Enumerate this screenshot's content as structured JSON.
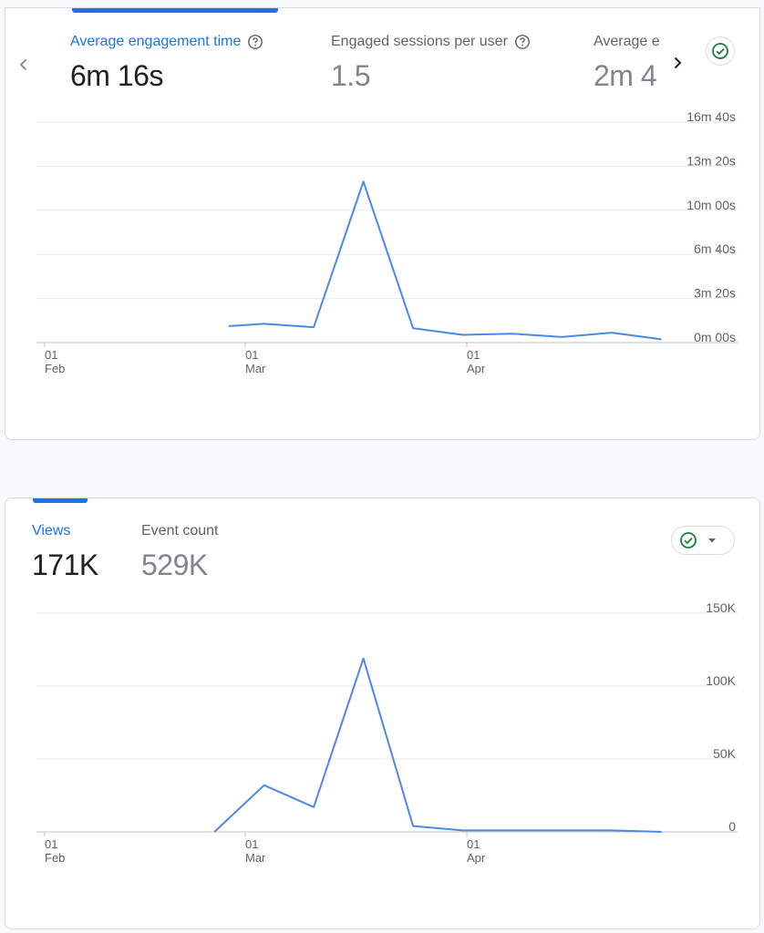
{
  "card1": {
    "metrics": [
      {
        "label": "Average engagement time",
        "value": "6m 16s"
      },
      {
        "label": "Engaged sessions per user",
        "value": "1.5"
      },
      {
        "label": "Average e",
        "value": "2m 4"
      }
    ]
  },
  "card2": {
    "metrics": [
      {
        "label": "Views",
        "value": "171K"
      },
      {
        "label": "Event count",
        "value": "529K"
      }
    ]
  },
  "icons": {
    "prev": "chevron-left-icon",
    "next": "chevron-right-icon",
    "help": "help-circle-icon",
    "check": "check-circle-icon",
    "dropdown": "arrow-drop-down-icon"
  },
  "colors": {
    "accent": "#1a73e8",
    "line": "#4a89e8",
    "check": "#188038"
  },
  "chart_data": [
    {
      "type": "line",
      "y_unit": "seconds",
      "yticks": [
        {
          "value": 0,
          "label": "0m 00s"
        },
        {
          "value": 200,
          "label": "3m 20s"
        },
        {
          "value": 400,
          "label": "6m 40s"
        },
        {
          "value": 600,
          "label": "10m 00s"
        },
        {
          "value": 800,
          "label": "13m 20s"
        },
        {
          "value": 1000,
          "label": "16m 40s"
        }
      ],
      "ylim": [
        0,
        1000
      ],
      "xticks": [
        {
          "day": "01",
          "month": "Feb"
        },
        {
          "day": "01",
          "month": "Mar"
        },
        {
          "day": "01",
          "month": "Apr"
        }
      ],
      "series": [
        {
          "x": [
            "2025-02-27",
            "2025-03-04",
            "2025-03-11",
            "2025-03-18",
            "2025-03-25",
            "2025-04-01",
            "2025-04-08",
            "2025-04-15",
            "2025-04-22",
            "2025-04-29"
          ],
          "values": [
            75,
            85,
            70,
            730,
            65,
            35,
            40,
            25,
            45,
            15
          ]
        }
      ],
      "grid": true
    },
    {
      "type": "line",
      "yticks": [
        {
          "value": 0,
          "label": "0"
        },
        {
          "value": 50000,
          "label": "50K"
        },
        {
          "value": 100000,
          "label": "100K"
        },
        {
          "value": 150000,
          "label": "150K"
        }
      ],
      "ylim": [
        0,
        150000
      ],
      "xticks": [
        {
          "day": "01",
          "month": "Feb"
        },
        {
          "day": "01",
          "month": "Mar"
        },
        {
          "day": "01",
          "month": "Apr"
        }
      ],
      "series": [
        {
          "x": [
            "2025-02-25",
            "2025-03-04",
            "2025-03-11",
            "2025-03-18",
            "2025-03-25",
            "2025-04-01",
            "2025-04-08",
            "2025-04-15",
            "2025-04-22",
            "2025-04-29"
          ],
          "values": [
            0,
            32000,
            17000,
            119000,
            4000,
            1000,
            1000,
            1000,
            1000,
            0
          ]
        }
      ],
      "grid": true
    }
  ]
}
